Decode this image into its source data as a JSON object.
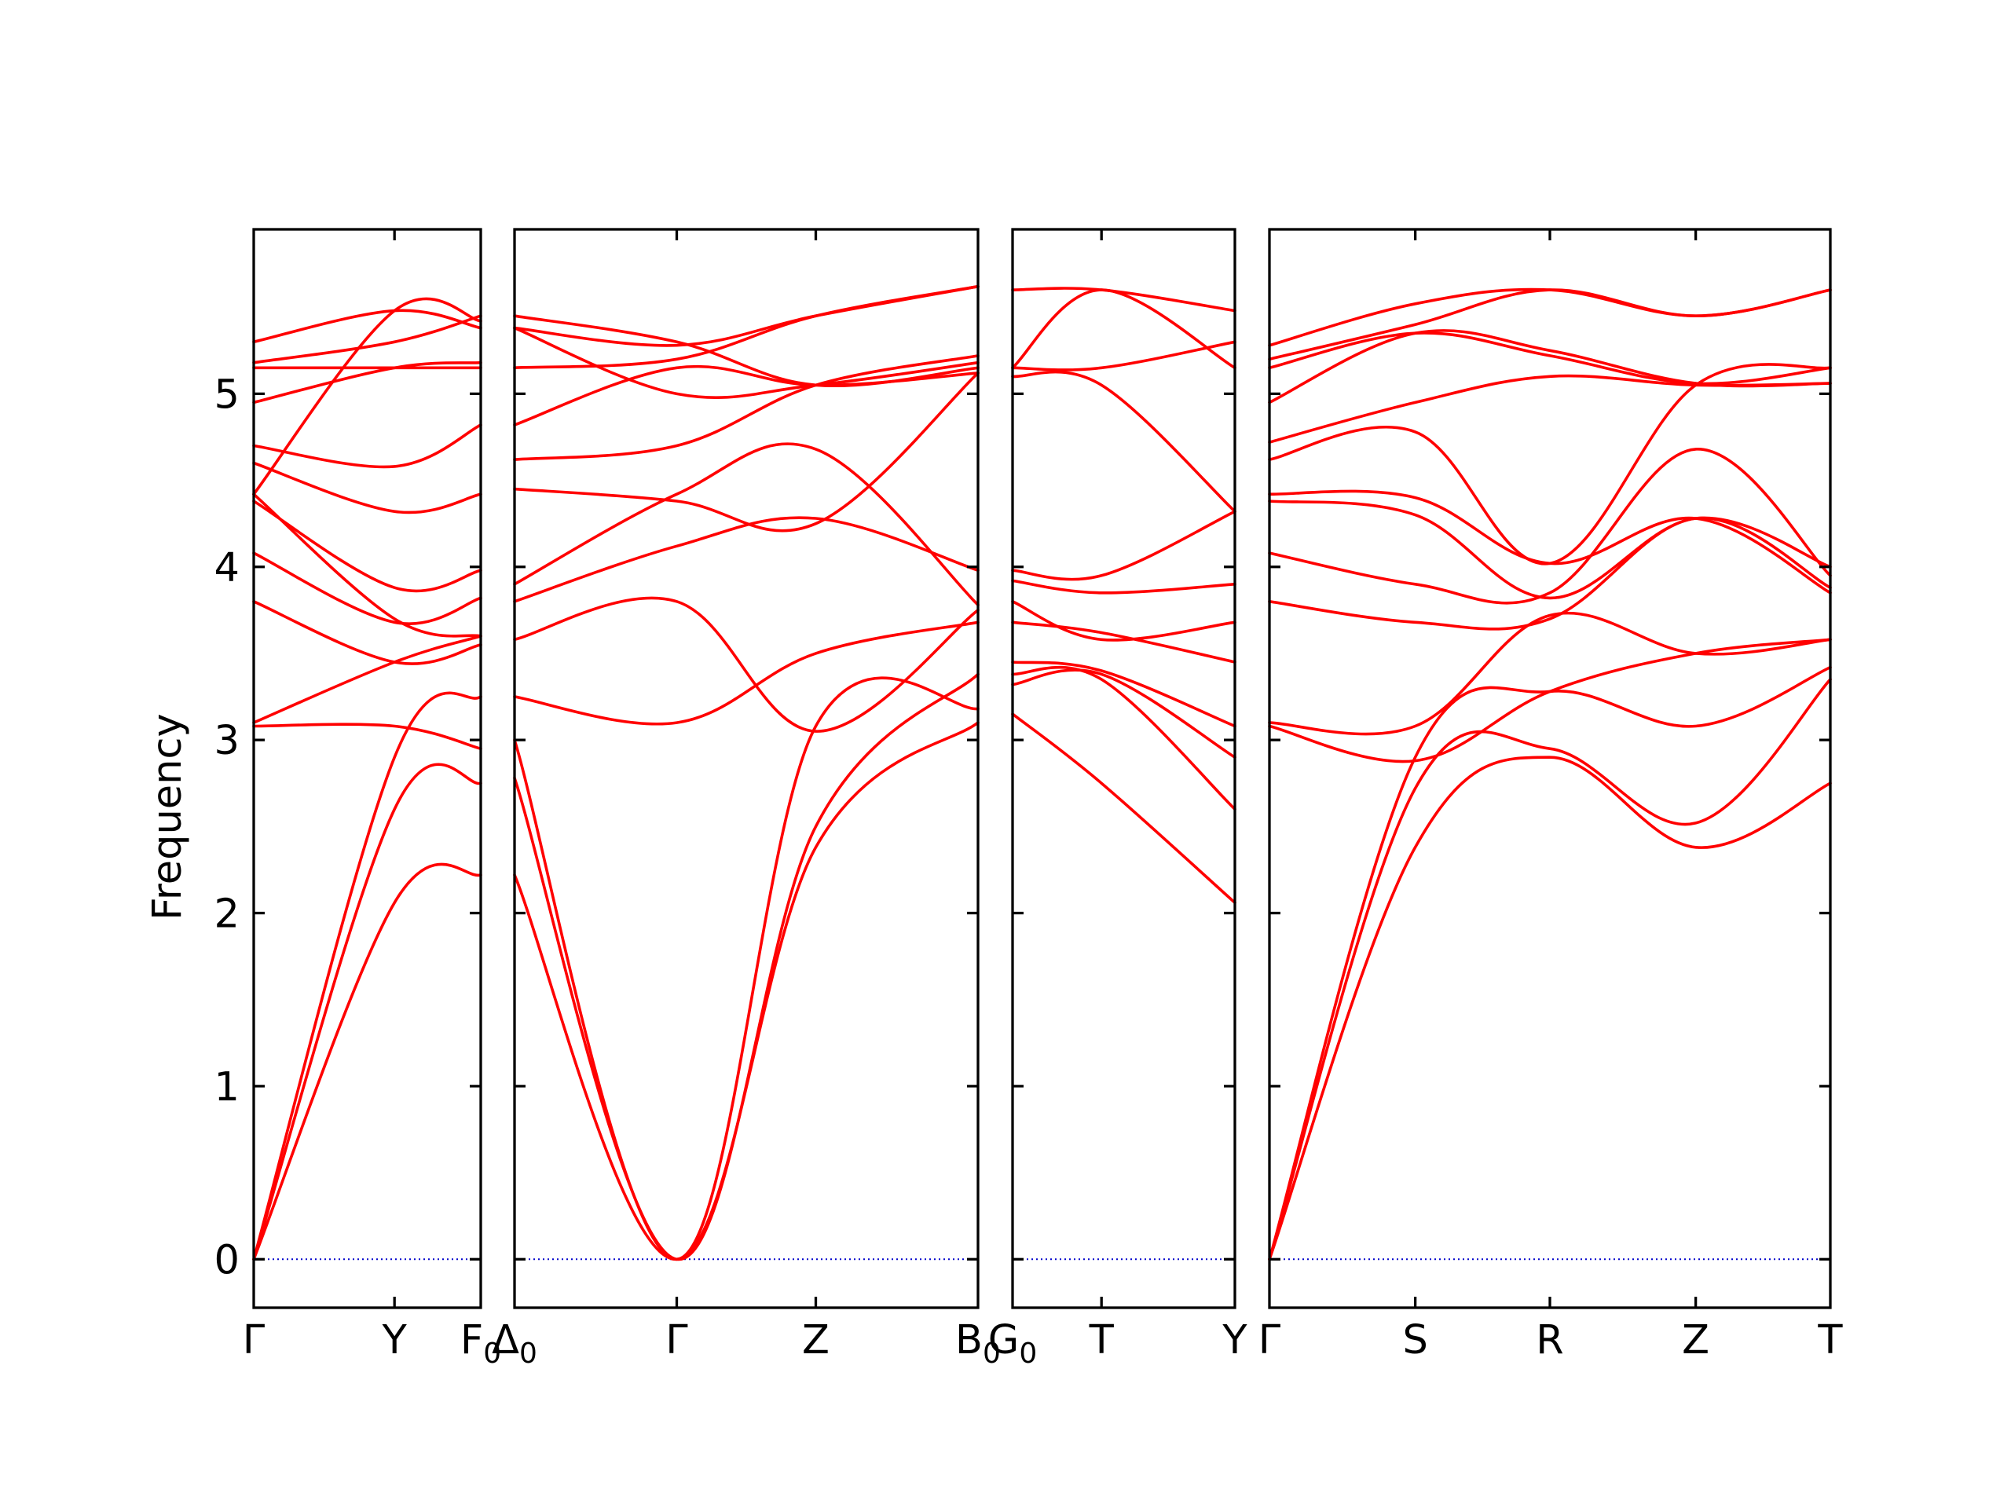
{
  "chart_data": {
    "type": "line",
    "ylabel": "Frequency",
    "ylim": [
      -0.28,
      5.95
    ],
    "yticks": [
      0,
      1,
      2,
      3,
      4,
      5
    ],
    "colors": {
      "bands": "#ff0000",
      "zero_line": "#0000cc",
      "axes": "#000000"
    },
    "panels": [
      {
        "segment_labels": [
          "Γ",
          "Y",
          "F0"
        ],
        "segments": [
          0.62,
          0.38
        ],
        "bands": [
          [
            0.0,
            2.06,
            2.22
          ],
          [
            0.0,
            2.6,
            2.75
          ],
          [
            0.0,
            2.9,
            3.25
          ],
          [
            3.08,
            3.08,
            2.95
          ],
          [
            3.1,
            3.45,
            3.6
          ],
          [
            3.8,
            3.45,
            3.55
          ],
          [
            4.08,
            3.68,
            3.82
          ],
          [
            4.38,
            3.88,
            3.98
          ],
          [
            4.42,
            3.7,
            3.6
          ],
          [
            4.6,
            4.32,
            4.42
          ],
          [
            4.7,
            4.58,
            4.82
          ],
          [
            4.95,
            5.15,
            5.18
          ],
          [
            5.15,
            5.15,
            5.15
          ],
          [
            5.18,
            5.3,
            5.45
          ],
          [
            5.3,
            5.48,
            5.38
          ],
          [
            4.42,
            5.48,
            5.42
          ]
        ]
      },
      {
        "segment_labels": [
          "Δ0",
          "Γ",
          "Z",
          "B0"
        ],
        "segments": [
          0.35,
          0.3,
          0.35
        ],
        "bands": [
          [
            2.22,
            0.0,
            2.38,
            3.1
          ],
          [
            2.78,
            0.0,
            2.5,
            3.38
          ],
          [
            3.0,
            0.0,
            3.08,
            3.18
          ],
          [
            3.25,
            3.1,
            3.5,
            3.68
          ],
          [
            3.58,
            3.8,
            3.05,
            3.75
          ],
          [
            3.8,
            4.12,
            4.28,
            3.98
          ],
          [
            3.9,
            4.42,
            4.68,
            3.78
          ],
          [
            4.45,
            4.38,
            4.25,
            5.12
          ],
          [
            4.62,
            4.7,
            5.05,
            5.22
          ],
          [
            4.82,
            5.15,
            5.05,
            5.12
          ],
          [
            5.15,
            5.2,
            5.45,
            5.62
          ],
          [
            5.38,
            5.28,
            5.45,
            5.62
          ],
          [
            5.45,
            5.3,
            5.05,
            5.15
          ],
          [
            5.38,
            5.0,
            5.05,
            5.18
          ]
        ]
      },
      {
        "segment_labels": [
          "G0",
          "T",
          "Y"
        ],
        "segments": [
          0.4,
          0.6
        ],
        "bands": [
          [
            3.15,
            2.75,
            2.06
          ],
          [
            3.38,
            3.35,
            2.6
          ],
          [
            3.32,
            3.38,
            2.9
          ],
          [
            3.45,
            3.4,
            3.08
          ],
          [
            3.68,
            3.62,
            3.45
          ],
          [
            3.8,
            3.58,
            3.68
          ],
          [
            3.92,
            3.85,
            3.9
          ],
          [
            3.98,
            3.95,
            4.32
          ],
          [
            5.1,
            5.05,
            4.32
          ],
          [
            5.15,
            5.15,
            5.3
          ],
          [
            5.6,
            5.6,
            5.48
          ],
          [
            5.15,
            5.6,
            5.15
          ]
        ]
      },
      {
        "segment_labels": [
          "Γ",
          "S",
          "R",
          "Z",
          "T"
        ],
        "segments": [
          0.26,
          0.24,
          0.26,
          0.24
        ],
        "bands": [
          [
            0.0,
            2.38,
            2.9,
            2.38,
            2.75
          ],
          [
            0.0,
            2.72,
            2.95,
            2.52,
            3.35
          ],
          [
            0.0,
            2.9,
            3.28,
            3.08,
            3.42
          ],
          [
            3.08,
            2.88,
            3.28,
            3.5,
            3.58
          ],
          [
            3.1,
            3.08,
            3.72,
            3.5,
            3.58
          ],
          [
            3.8,
            3.68,
            3.7,
            4.28,
            3.88
          ],
          [
            4.08,
            3.9,
            3.85,
            4.68,
            3.95
          ],
          [
            4.38,
            4.3,
            3.82,
            4.28,
            4.0
          ],
          [
            4.42,
            4.4,
            4.02,
            4.28,
            3.85
          ],
          [
            4.62,
            4.78,
            4.02,
            5.05,
            5.15
          ],
          [
            4.72,
            4.95,
            5.1,
            5.05,
            5.06
          ],
          [
            4.95,
            5.35,
            5.25,
            5.06,
            5.06
          ],
          [
            5.15,
            5.35,
            5.22,
            5.06,
            5.15
          ],
          [
            5.2,
            5.4,
            5.6,
            5.45,
            5.6
          ],
          [
            5.28,
            5.52,
            5.6,
            5.45,
            5.6
          ]
        ]
      }
    ]
  }
}
